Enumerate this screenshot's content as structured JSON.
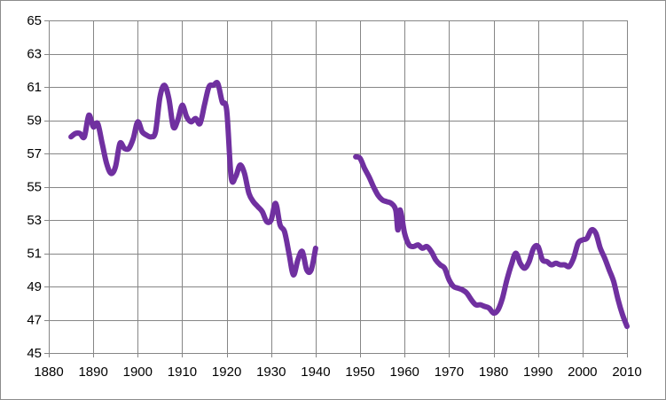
{
  "chart_data": {
    "type": "line",
    "title": "",
    "xlabel": "",
    "ylabel": "",
    "xlim": [
      1880,
      2010
    ],
    "ylim": [
      45,
      65
    ],
    "x_ticks": [
      "1880",
      "1890",
      "1900",
      "1910",
      "1920",
      "1930",
      "1940",
      "1950",
      "1960",
      "1970",
      "1980",
      "1990",
      "2000",
      "2010"
    ],
    "y_ticks": [
      "45",
      "47",
      "49",
      "51",
      "53",
      "55",
      "57",
      "59",
      "61",
      "63",
      "65"
    ],
    "grid": true,
    "legend": "none",
    "colors": {
      "line": "#7030a0",
      "grid": "#868686",
      "axis": "#868686"
    },
    "series": [
      {
        "segments": [
          [
            [
              1885,
              58.0
            ],
            [
              1886,
              58.2
            ],
            [
              1887,
              58.2
            ],
            [
              1888,
              58.0
            ],
            [
              1889,
              59.3
            ],
            [
              1890,
              58.6
            ],
            [
              1891,
              58.8
            ],
            [
              1892,
              57.6
            ],
            [
              1893,
              56.4
            ],
            [
              1894,
              55.8
            ],
            [
              1895,
              56.2
            ],
            [
              1896,
              57.6
            ],
            [
              1897,
              57.3
            ],
            [
              1898,
              57.3
            ],
            [
              1899,
              57.9
            ],
            [
              1900,
              58.9
            ],
            [
              1901,
              58.3
            ],
            [
              1902,
              58.1
            ],
            [
              1903,
              58.0
            ],
            [
              1904,
              58.3
            ],
            [
              1905,
              60.4
            ],
            [
              1906,
              61.1
            ],
            [
              1907,
              60.3
            ],
            [
              1908,
              58.6
            ],
            [
              1909,
              59.0
            ],
            [
              1910,
              59.9
            ],
            [
              1911,
              59.2
            ],
            [
              1912,
              58.9
            ],
            [
              1913,
              59.1
            ],
            [
              1914,
              58.8
            ],
            [
              1915,
              59.9
            ],
            [
              1916,
              61.0
            ],
            [
              1917,
              61.1
            ],
            [
              1918,
              61.2
            ],
            [
              1919,
              60.1
            ],
            [
              1920,
              59.6
            ],
            [
              1921,
              55.6
            ],
            [
              1922,
              55.6
            ],
            [
              1923,
              56.3
            ],
            [
              1924,
              55.8
            ],
            [
              1925,
              54.6
            ],
            [
              1926,
              54.1
            ],
            [
              1927,
              53.8
            ],
            [
              1928,
              53.5
            ],
            [
              1929,
              52.9
            ],
            [
              1930,
              53.0
            ],
            [
              1931,
              54.0
            ],
            [
              1932,
              52.7
            ],
            [
              1933,
              52.3
            ],
            [
              1934,
              51.0
            ],
            [
              1935,
              49.7
            ],
            [
              1936,
              50.6
            ],
            [
              1937,
              51.1
            ],
            [
              1938,
              50.0
            ],
            [
              1939,
              50.0
            ],
            [
              1940,
              51.3
            ]
          ],
          [
            [
              1949,
              56.8
            ],
            [
              1950,
              56.7
            ],
            [
              1951,
              56.1
            ],
            [
              1952,
              55.6
            ],
            [
              1953,
              55.0
            ],
            [
              1954,
              54.5
            ],
            [
              1955,
              54.2
            ],
            [
              1956,
              54.1
            ],
            [
              1957,
              54.0
            ],
            [
              1958,
              53.6
            ],
            [
              1958.5,
              52.4
            ],
            [
              1959,
              53.6
            ],
            [
              1960,
              52.2
            ],
            [
              1961,
              51.5
            ],
            [
              1962,
              51.4
            ],
            [
              1963,
              51.5
            ],
            [
              1964,
              51.3
            ],
            [
              1965,
              51.4
            ],
            [
              1966,
              51.1
            ],
            [
              1967,
              50.6
            ],
            [
              1968,
              50.3
            ],
            [
              1969,
              50.1
            ],
            [
              1970,
              49.4
            ],
            [
              1971,
              49.0
            ],
            [
              1972,
              48.9
            ],
            [
              1973,
              48.8
            ],
            [
              1974,
              48.6
            ],
            [
              1975,
              48.2
            ],
            [
              1976,
              47.9
            ],
            [
              1977,
              47.9
            ],
            [
              1978,
              47.8
            ],
            [
              1979,
              47.7
            ],
            [
              1980,
              47.4
            ],
            [
              1981,
              47.6
            ],
            [
              1982,
              48.3
            ],
            [
              1983,
              49.4
            ],
            [
              1984,
              50.3
            ],
            [
              1985,
              51.0
            ],
            [
              1986,
              50.4
            ],
            [
              1987,
              50.1
            ],
            [
              1988,
              50.5
            ],
            [
              1989,
              51.3
            ],
            [
              1990,
              51.4
            ],
            [
              1991,
              50.6
            ],
            [
              1992,
              50.5
            ],
            [
              1993,
              50.3
            ],
            [
              1994,
              50.4
            ],
            [
              1995,
              50.3
            ],
            [
              1996,
              50.3
            ],
            [
              1997,
              50.2
            ],
            [
              1998,
              50.7
            ],
            [
              1999,
              51.6
            ],
            [
              2000,
              51.8
            ],
            [
              2001,
              51.9
            ],
            [
              2002,
              52.4
            ],
            [
              2003,
              52.2
            ],
            [
              2004,
              51.3
            ],
            [
              2005,
              50.7
            ],
            [
              2006,
              50.0
            ],
            [
              2007,
              49.3
            ],
            [
              2008,
              48.2
            ],
            [
              2009,
              47.3
            ],
            [
              2010,
              46.6
            ]
          ]
        ]
      }
    ]
  }
}
